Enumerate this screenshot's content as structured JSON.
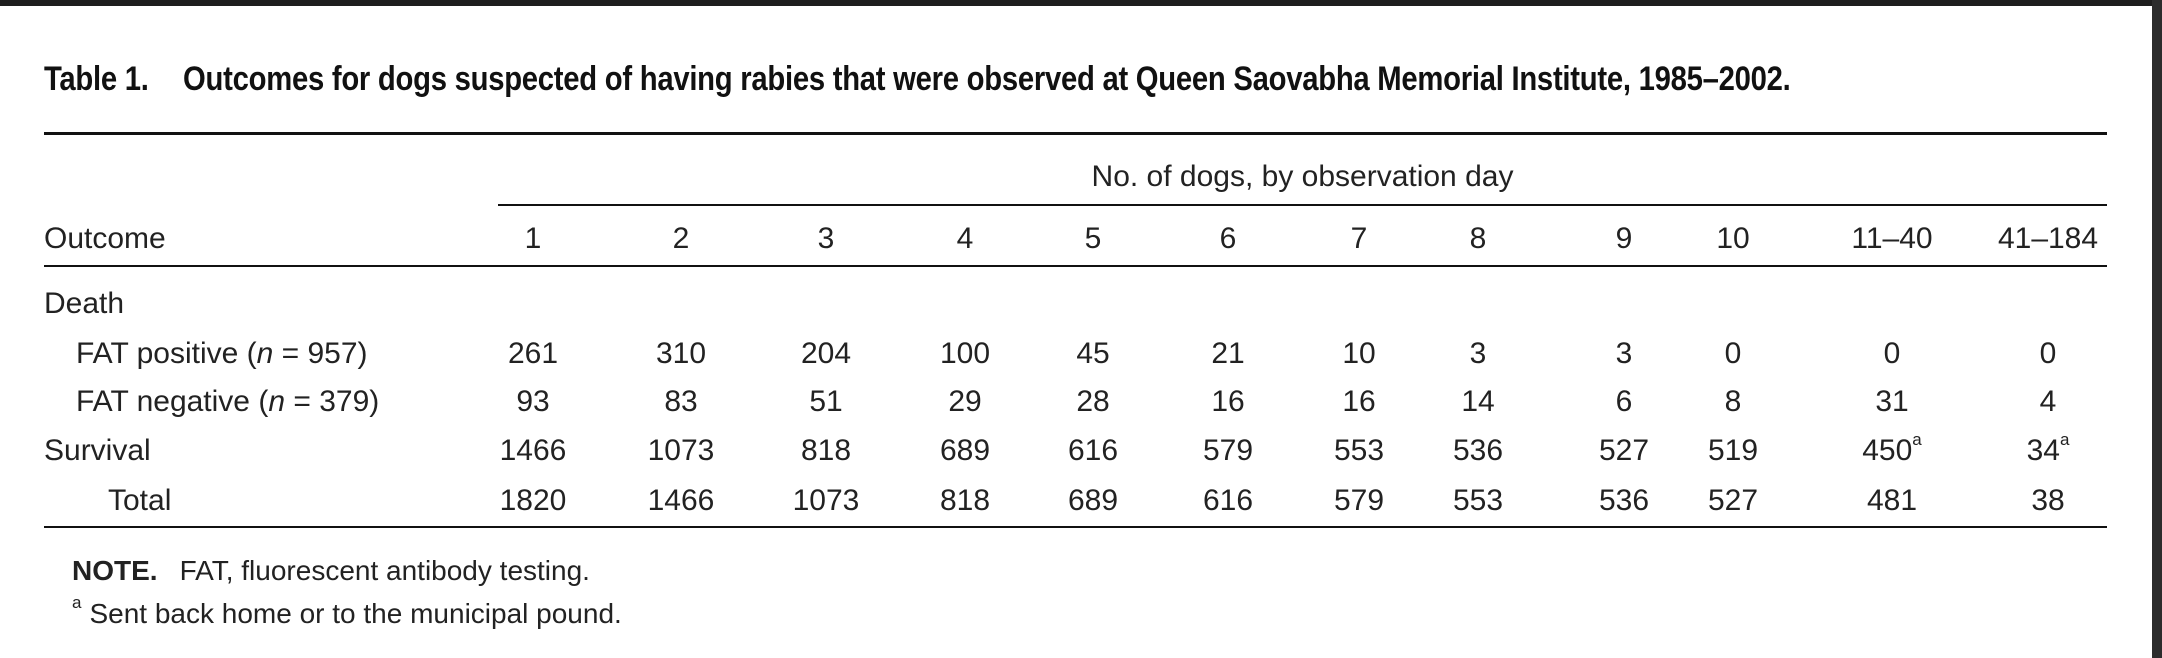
{
  "table": {
    "label": "Table 1.",
    "caption": "Outcomes for dogs suspected of having rabies that were observed at Queen Saovabha Memorial Institute, 1985–2002.",
    "spanner": "No. of dogs, by observation day",
    "stub_header": "Outcome",
    "columns": [
      "1",
      "2",
      "3",
      "4",
      "5",
      "6",
      "7",
      "8",
      "9",
      "10",
      "11–40",
      "41–184"
    ],
    "rows": [
      {
        "label": "Death",
        "values": [
          "",
          "",
          "",
          "",
          "",
          "",
          "",
          "",
          "",
          "",
          "",
          ""
        ]
      },
      {
        "label": "FAT positive (n = 957)",
        "label_pre": "FAT positive (",
        "label_n": "n",
        "label_post": " = 957)",
        "values": [
          "261",
          "310",
          "204",
          "100",
          "45",
          "21",
          "10",
          "3",
          "3",
          "0",
          "0",
          "0"
        ]
      },
      {
        "label": "FAT negative (n = 379)",
        "label_pre": "FAT negative (",
        "label_n": "n",
        "label_post": " = 379)",
        "values": [
          "93",
          "83",
          "51",
          "29",
          "28",
          "16",
          "16",
          "14",
          "6",
          "8",
          "31",
          "4"
        ]
      },
      {
        "label": "Survival",
        "values": [
          "1466",
          "1073",
          "818",
          "689",
          "616",
          "579",
          "553",
          "536",
          "527",
          "519",
          "450",
          "34"
        ],
        "footnote_mark": "a"
      },
      {
        "label": "Total",
        "values": [
          "1820",
          "1466",
          "1073",
          "818",
          "689",
          "616",
          "579",
          "553",
          "536",
          "527",
          "481",
          "38"
        ]
      }
    ],
    "note_label": "NOTE.",
    "note_text": "FAT, fluorescent antibody testing.",
    "footnote_mark": "a",
    "footnote_text": "Sent back home or to the municipal pound."
  }
}
